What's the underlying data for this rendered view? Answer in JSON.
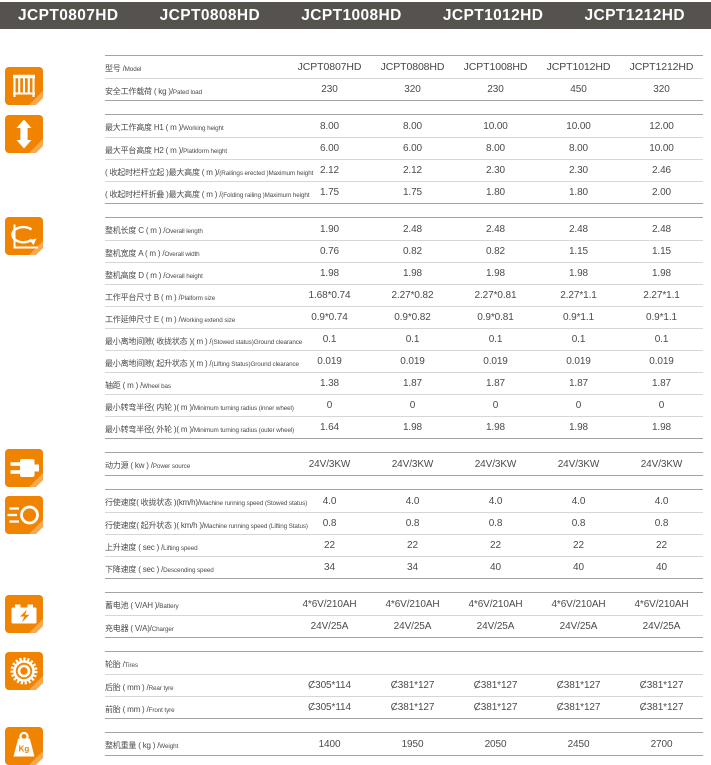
{
  "colors": {
    "accent_orange": "#f08300",
    "fold_orange": "#f6a94e",
    "banner_gray": "#56524d"
  },
  "header": {
    "models": [
      "JCPT0807HD",
      "JCPT0808HD",
      "JCPT1008HD",
      "JCPT1012HD",
      "JCPT1212HD"
    ]
  },
  "table": {
    "sections": [
      {
        "id": "model-load",
        "icon": "cage-icon",
        "rows": [
          {
            "zh": "型号 /",
            "en": "Model",
            "values": [
              "JCPT0807HD",
              "JCPT0808HD",
              "JCPT1008HD",
              "JCPT1012HD",
              "JCPT1212HD"
            ]
          },
          {
            "zh": "安全工作载荷 ( kg )/",
            "en": "Pated load",
            "values": [
              "230",
              "320",
              "230",
              "450",
              "320"
            ]
          }
        ]
      },
      {
        "id": "height",
        "icon": "updown-arrow-icon",
        "rows": [
          {
            "zh": "最大工作高度 H1 ( m )/",
            "en": "Working height",
            "values": [
              "8.00",
              "8.00",
              "10.00",
              "10.00",
              "12.00"
            ]
          },
          {
            "zh": "最大平台高度 H2 ( m )/",
            "en": "Platkform height",
            "values": [
              "6.00",
              "6.00",
              "8.00",
              "8.00",
              "10.00"
            ]
          },
          {
            "zh": "( 收起时栏杆立起 )最大高度 ( m )/",
            "en": "(Railings erected )Maximum height",
            "values": [
              "2.12",
              "2.12",
              "2.30",
              "2.30",
              "2.46"
            ]
          },
          {
            "zh": "( 收起时栏杆折叠 )最大高度 ( m ) /",
            "en": "(Folding railing )Maximum height",
            "values": [
              "1.75",
              "1.75",
              "1.80",
              "1.80",
              "2.00"
            ]
          }
        ]
      },
      {
        "id": "dimensions",
        "icon": "turning-radius-icon",
        "rows": [
          {
            "zh": "整机长度 C ( m ) /",
            "en": "Overall length",
            "values": [
              "1.90",
              "2.48",
              "2.48",
              "2.48",
              "2.48"
            ]
          },
          {
            "zh": "整机宽度 A ( m ) /",
            "en": "Overall width",
            "values": [
              "0.76",
              "0.82",
              "0.82",
              "1.15",
              "1.15"
            ]
          },
          {
            "zh": "整机高度 D ( m ) /",
            "en": "Overall height",
            "values": [
              "1.98",
              "1.98",
              "1.98",
              "1.98",
              "1.98"
            ]
          },
          {
            "zh": "工作平台尺寸 B ( m ) /",
            "en": "Plalform size",
            "values": [
              "1.68*0.74",
              "2.27*0.82",
              "2.27*0.81",
              "2.27*1.1",
              "2.27*1.1"
            ]
          },
          {
            "zh": "工作延伸尺寸 E ( m ) /",
            "en": "Working extend size",
            "values": [
              "0.9*0.74",
              "0.9*0.82",
              "0.9*0.81",
              "0.9*1.1",
              "0.9*1.1"
            ]
          },
          {
            "zh": "最小离地间隙( 收拢状态 )( m ) /",
            "en": "(Stowed status)Ground clearance",
            "values": [
              "0.1",
              "0.1",
              "0.1",
              "0.1",
              "0.1"
            ]
          },
          {
            "zh": "最小离地间隙( 起升状态 )( m ) /",
            "en": "(Lifting Status)Ground clearance",
            "values": [
              "0.019",
              "0.019",
              "0.019",
              "0.019",
              "0.019"
            ]
          },
          {
            "zh": "轴距 ( m ) /",
            "en": "Wheel bas",
            "values": [
              "1.38",
              "1.87",
              "1.87",
              "1.87",
              "1.87"
            ]
          },
          {
            "zh": "最小转弯半径( 内轮 )( m )/",
            "en": "Minimum turning radius (inner wheel)",
            "values": [
              "0",
              "0",
              "0",
              "0",
              "0"
            ]
          },
          {
            "zh": "最小转弯半径( 外轮 )( m )/",
            "en": "Minimum turning radius (outer wheel)",
            "values": [
              "1.64",
              "1.98",
              "1.98",
              "1.98",
              "1.98"
            ]
          }
        ]
      },
      {
        "id": "power",
        "icon": "plug-icon",
        "rows": [
          {
            "zh": "动力源 ( kw ) /",
            "en": "Power source",
            "values": [
              "24V/3KW",
              "24V/3KW",
              "24V/3KW",
              "24V/3KW",
              "24V/3KW"
            ]
          }
        ]
      },
      {
        "id": "speed",
        "icon": "speed-icon",
        "rows": [
          {
            "zh": "行使速度( 收拢状态 )(km/h)/",
            "en": "Machine running speed (Stowed status)",
            "values": [
              "4.0",
              "4.0",
              "4.0",
              "4.0",
              "4.0"
            ]
          },
          {
            "zh": "行使速度( 起升状态 )( km/h )/",
            "en": "Machine running speed (Lifting Status)",
            "values": [
              "0.8",
              "0.8",
              "0.8",
              "0.8",
              "0.8"
            ]
          },
          {
            "zh": "上升速度 ( sec ) /",
            "en": "Lifting speed",
            "values": [
              "22",
              "22",
              "22",
              "22",
              "22"
            ]
          },
          {
            "zh": "下降速度 ( sec ) /",
            "en": "Descending speed",
            "values": [
              "34",
              "34",
              "40",
              "40",
              "40"
            ]
          }
        ]
      },
      {
        "id": "battery",
        "icon": "battery-icon",
        "rows": [
          {
            "zh": "蓄电池 ( V/AH )/",
            "en": "Battery",
            "values": [
              "4*6V/210AH",
              "4*6V/210AH",
              "4*6V/210AH",
              "4*6V/210AH",
              "4*6V/210AH"
            ]
          },
          {
            "zh": "充电器 ( V/A)/",
            "en": "Charger",
            "values": [
              "24V/25A",
              "24V/25A",
              "24V/25A",
              "24V/25A",
              "24V/25A"
            ]
          }
        ]
      },
      {
        "id": "tires",
        "icon": "tire-icon",
        "rows": [
          {
            "zh": "轮胎 /",
            "en": "Tires",
            "values": [
              "",
              "",
              "",
              "",
              ""
            ]
          },
          {
            "zh": "后胎 ( mm ) /",
            "en": "Rear tyre",
            "values": [
              "Ȼ305*114",
              "Ȼ381*127",
              "Ȼ381*127",
              "Ȼ381*127",
              "Ȼ381*127"
            ]
          },
          {
            "zh": "前胎 ( mm ) /",
            "en": "Front tyre",
            "values": [
              "Ȼ305*114",
              "Ȼ381*127",
              "Ȼ381*127",
              "Ȼ381*127",
              "Ȼ381*127"
            ]
          }
        ]
      },
      {
        "id": "weight",
        "icon": "weight-icon",
        "rows": [
          {
            "zh": "整机重量 ( kg ) /",
            "en": "Weight",
            "values": [
              "1400",
              "1950",
              "2050",
              "2450",
              "2700"
            ]
          }
        ]
      }
    ]
  }
}
